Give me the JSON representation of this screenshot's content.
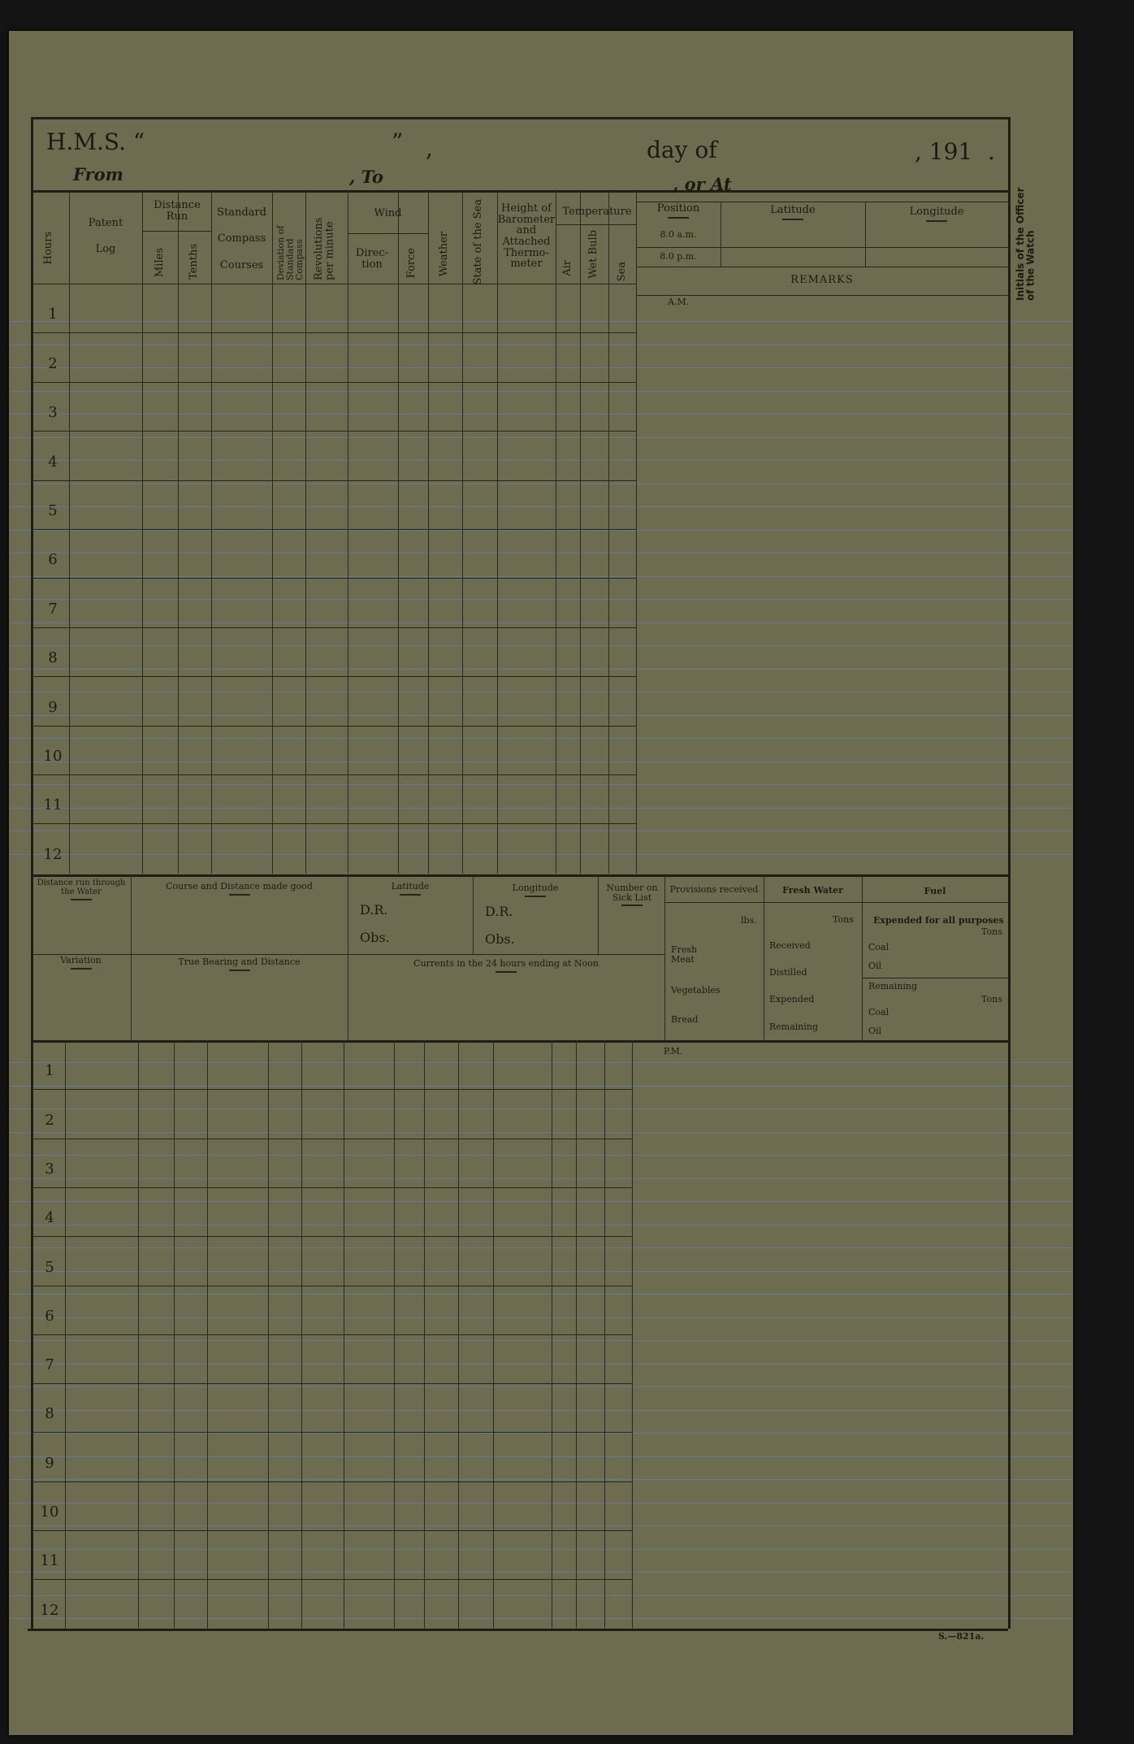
{
  "header": {
    "hms": "H.M.S. “",
    "close_quote": "”",
    "comma": ",",
    "day_of": "day of",
    "year": ", 191",
    "period": ".",
    "from": "From",
    "to": ", To",
    "or_at": ", or At"
  },
  "columns": {
    "hours": "Hours",
    "patent": "Patent",
    "log": "Log",
    "distance_run": "Distance Run",
    "miles": "Miles",
    "tenths": "Tenths",
    "standard": "Standard",
    "compass": "Compass",
    "courses": "Courses",
    "deviation": "Deviation of Standard Compass",
    "revolutions": "Revolutions per minute",
    "wind": "Wind",
    "direction": "Direc- tion",
    "force": "Force",
    "weather": "Weather",
    "state_of_sea": "State of the Sea",
    "barometer": "Height of Barometer and Attached Thermo- meter",
    "temperature": "Temperature",
    "air": "Air",
    "wet_bulb": "Wet Bulb",
    "sea": "Sea"
  },
  "position_block": {
    "position": "Position",
    "am_time": "8.0 a.m.",
    "pm_time": "8.0 p.m.",
    "latitude": "Latitude",
    "longitude": "Longitude",
    "remarks": "REMARKS"
  },
  "initials": "Initials of the Officer of the Watch",
  "am_label": "A.M.",
  "pm_label": "P.M.",
  "hours": [
    "1",
    "2",
    "3",
    "4",
    "5",
    "6",
    "7",
    "8",
    "9",
    "10",
    "11",
    "12"
  ],
  "summary": {
    "distance_water": "Distance run through the Water",
    "course_distance": "Course and Distance made good",
    "latitude": "Latitude",
    "longitude": "Longitude",
    "dr": "D.R.",
    "obs": "Obs.",
    "sick_list": "Number on Sick List",
    "variation": "Variation",
    "true_bearing": "True Bearing and Distance",
    "currents": "Currents in the 24 hours ending at Noon",
    "provisions": {
      "title": "Provisions received",
      "unit": "lbs.",
      "items": [
        "Fresh Meat",
        "Vegetables",
        "Bread"
      ]
    },
    "fresh_water": {
      "title": "Fresh Water",
      "unit": "Tons",
      "items": [
        "Received",
        "Distilled",
        "Expended",
        "Remaining"
      ]
    },
    "fuel": {
      "title": "Fuel",
      "expended": "Expended for all purposes",
      "unit": "Tons",
      "coal": "Coal",
      "oil": "Oil",
      "remaining": "Remaining"
    }
  },
  "form_number": "S.—821a.",
  "colors": {
    "paper": "#6d6c51",
    "ink": "#1b1b12",
    "ruling": "#6a7894",
    "background": "#141414"
  }
}
